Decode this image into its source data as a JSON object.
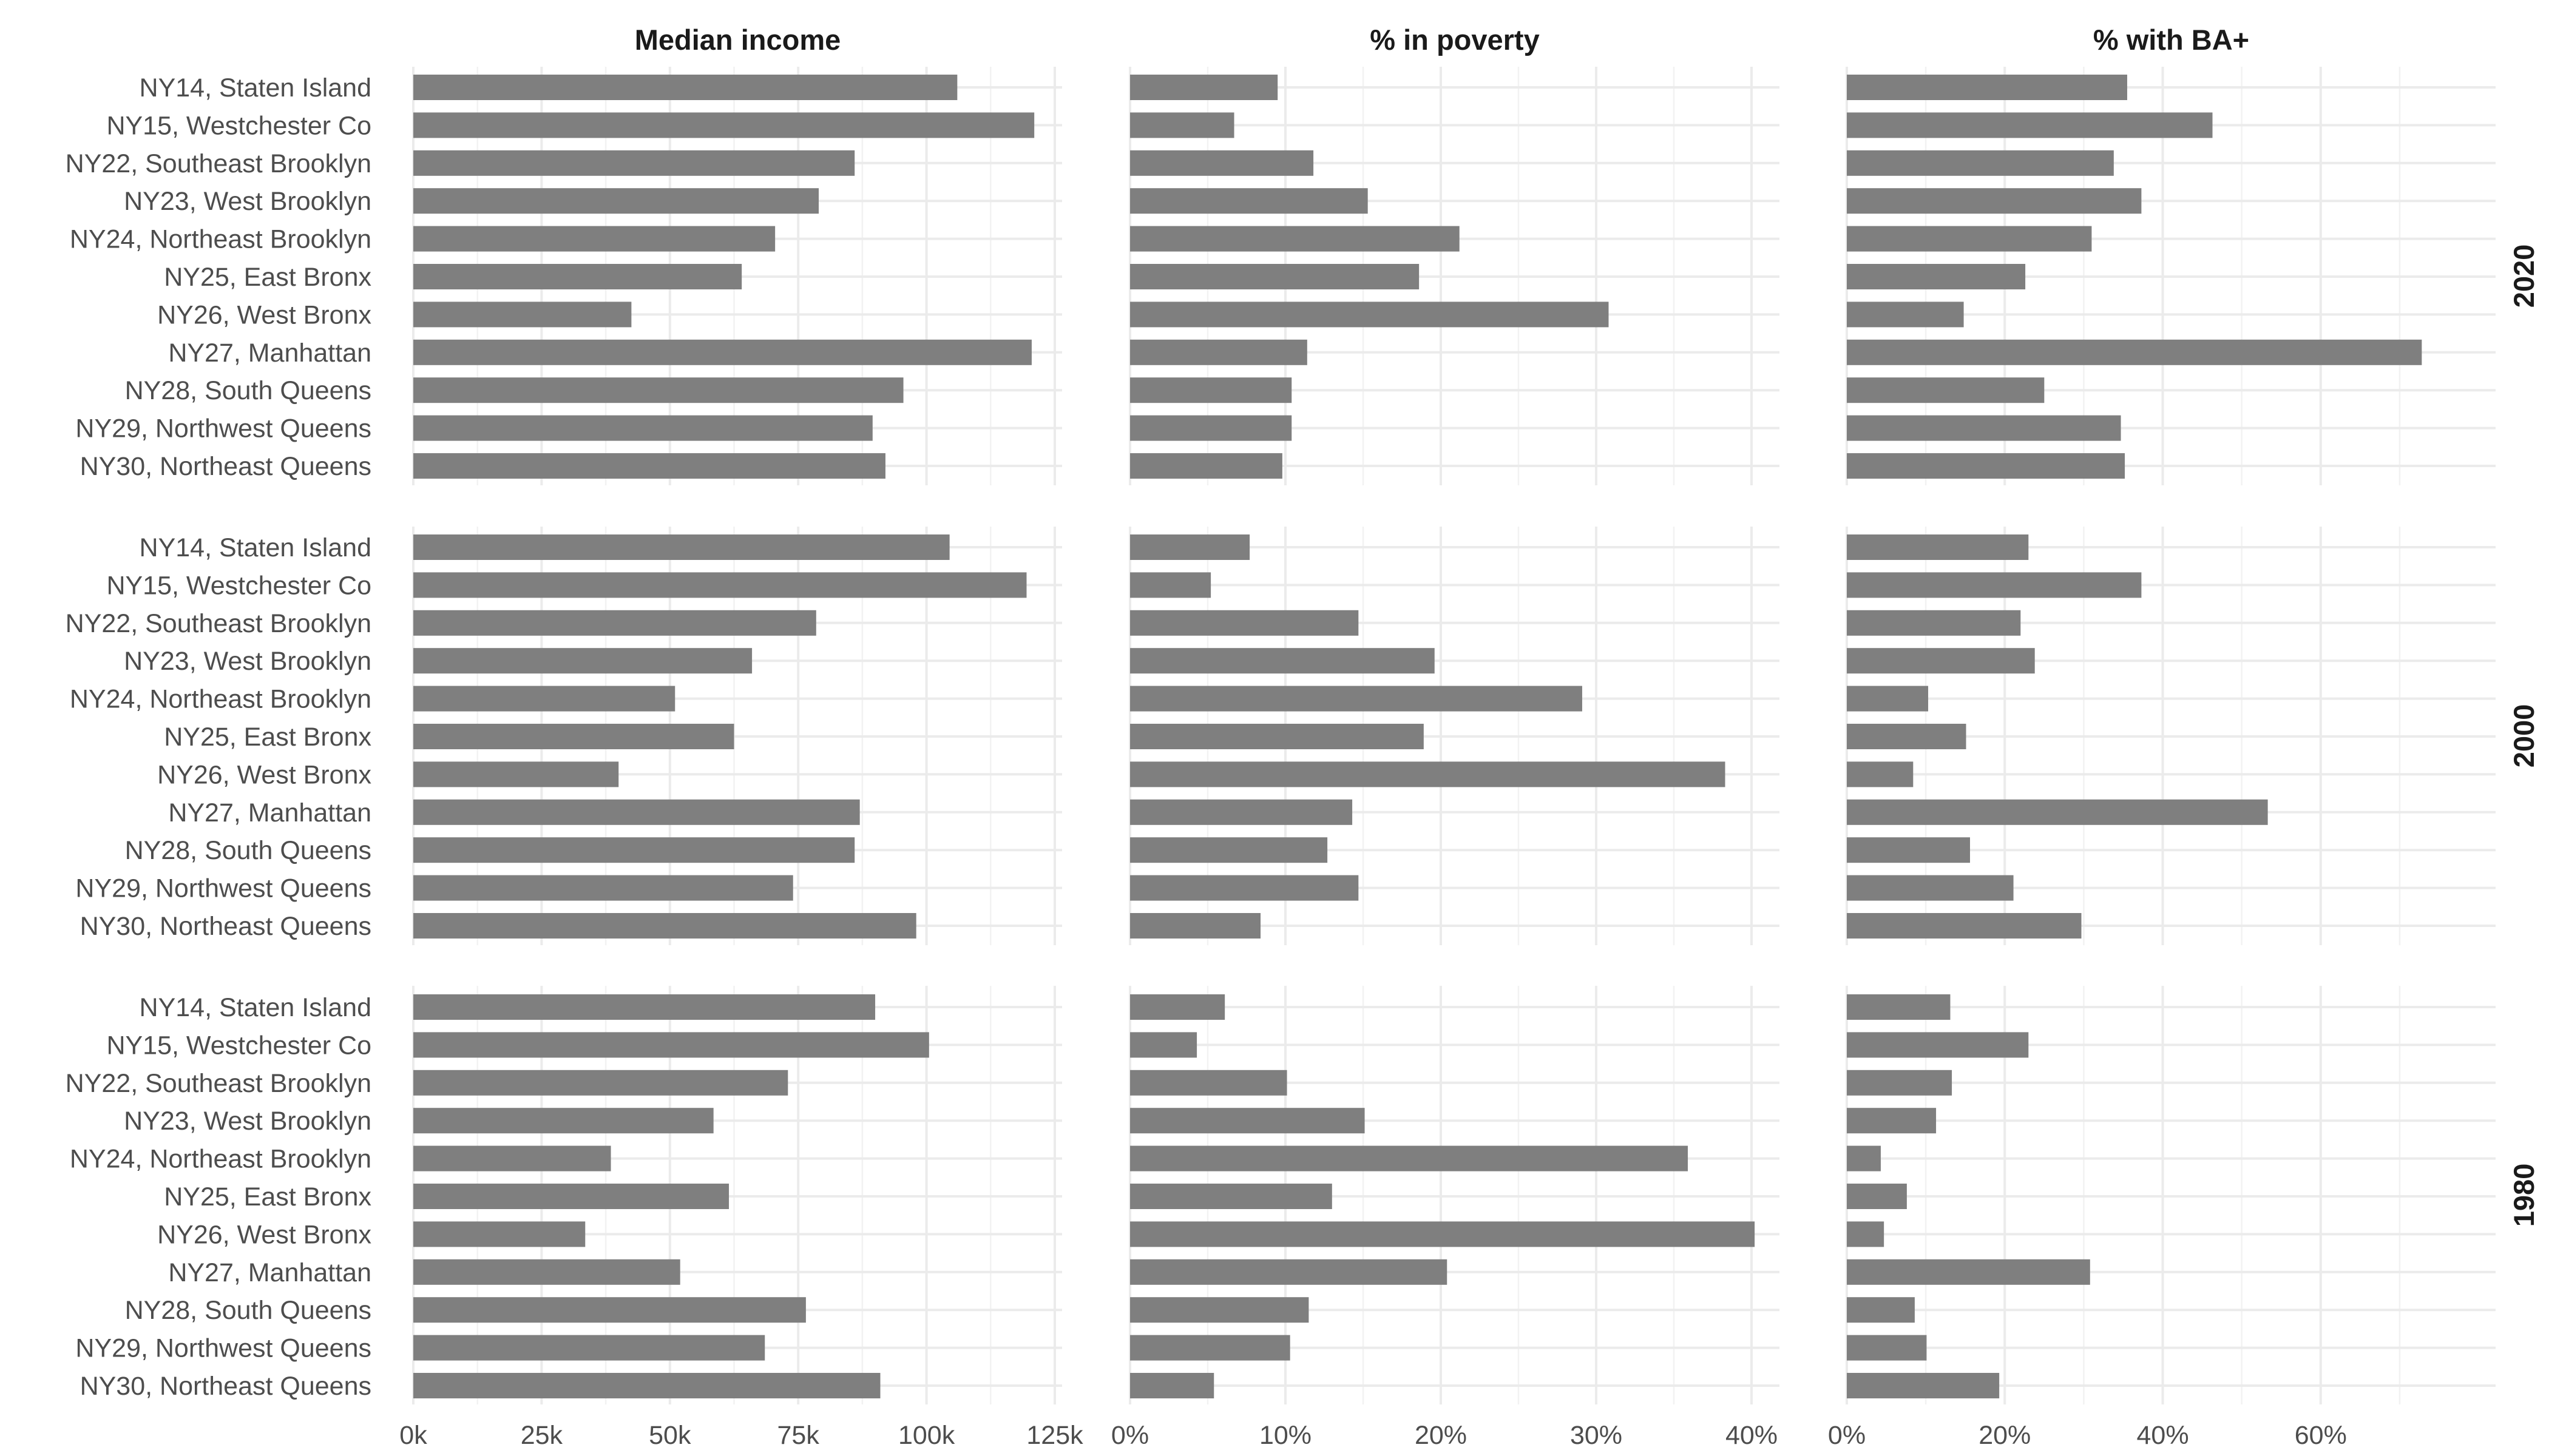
{
  "chart_data": {
    "type": "bar",
    "orientation": "horizontal",
    "grid": true,
    "bar_color": "#7f7f7f",
    "categories": [
      "NY14, Staten Island",
      "NY15, Westchester Co",
      "NY22, Southeast Brooklyn",
      "NY23, West Brooklyn",
      "NY24, Northeast Brooklyn",
      "NY25, East Bronx",
      "NY26, West Bronx",
      "NY27, Manhattan",
      "NY28, South Queens",
      "NY29, Northwest Queens",
      "NY30, Northeast Queens"
    ],
    "columns": [
      {
        "title": "Median income",
        "xlim": [
          0,
          125000
        ],
        "ticks": [
          0,
          25000,
          50000,
          75000,
          100000,
          125000
        ],
        "tick_labels": [
          "0k",
          "25k",
          "50k",
          "75k",
          "100k",
          "125k"
        ]
      },
      {
        "title": "% in poverty",
        "xlim": [
          0,
          40
        ],
        "ticks": [
          0,
          10,
          20,
          30,
          40
        ],
        "tick_labels": [
          "0%",
          "10%",
          "20%",
          "30%",
          "40%"
        ]
      },
      {
        "title": "% with BA+",
        "xlim": [
          0,
          75
        ],
        "ticks": [
          0,
          20,
          40,
          60
        ],
        "tick_labels": [
          "0%",
          "20%",
          "40%",
          "60%"
        ]
      }
    ],
    "rows": [
      {
        "title": "2020",
        "series": [
          {
            "values": [
              106000,
              121000,
              86000,
              79000,
              70500,
              64000,
              42500,
              120500,
              95500,
              89500,
              92000
            ]
          },
          {
            "values": [
              9.5,
              6.7,
              11.8,
              15.3,
              21.2,
              18.6,
              30.8,
              11.4,
              10.4,
              10.4,
              9.8
            ]
          },
          {
            "values": [
              35.5,
              46.3,
              33.8,
              37.3,
              31.0,
              22.6,
              14.8,
              72.8,
              25.0,
              34.7,
              35.2
            ]
          }
        ]
      },
      {
        "title": "2000",
        "series": [
          {
            "values": [
              104500,
              119500,
              78500,
              66000,
              51000,
              62500,
              40000,
              87000,
              86000,
              74000,
              98000
            ]
          },
          {
            "values": [
              7.7,
              5.2,
              14.7,
              19.6,
              29.1,
              18.9,
              38.3,
              14.3,
              12.7,
              14.7,
              8.4
            ]
          },
          {
            "values": [
              23.0,
              37.3,
              22.0,
              23.8,
              10.3,
              15.1,
              8.4,
              53.3,
              15.6,
              21.1,
              29.7
            ]
          }
        ]
      },
      {
        "title": "1980",
        "series": [
          {
            "values": [
              90000,
              100500,
              73000,
              58500,
              38500,
              61500,
              33500,
              52000,
              76500,
              68500,
              91000
            ]
          },
          {
            "values": [
              6.1,
              4.3,
              10.1,
              15.1,
              35.9,
              13.0,
              40.2,
              20.4,
              11.5,
              10.3,
              5.4
            ]
          },
          {
            "values": [
              13.1,
              23.0,
              13.3,
              11.3,
              4.3,
              7.6,
              4.7,
              30.8,
              8.6,
              10.1,
              19.3
            ]
          }
        ]
      }
    ]
  }
}
